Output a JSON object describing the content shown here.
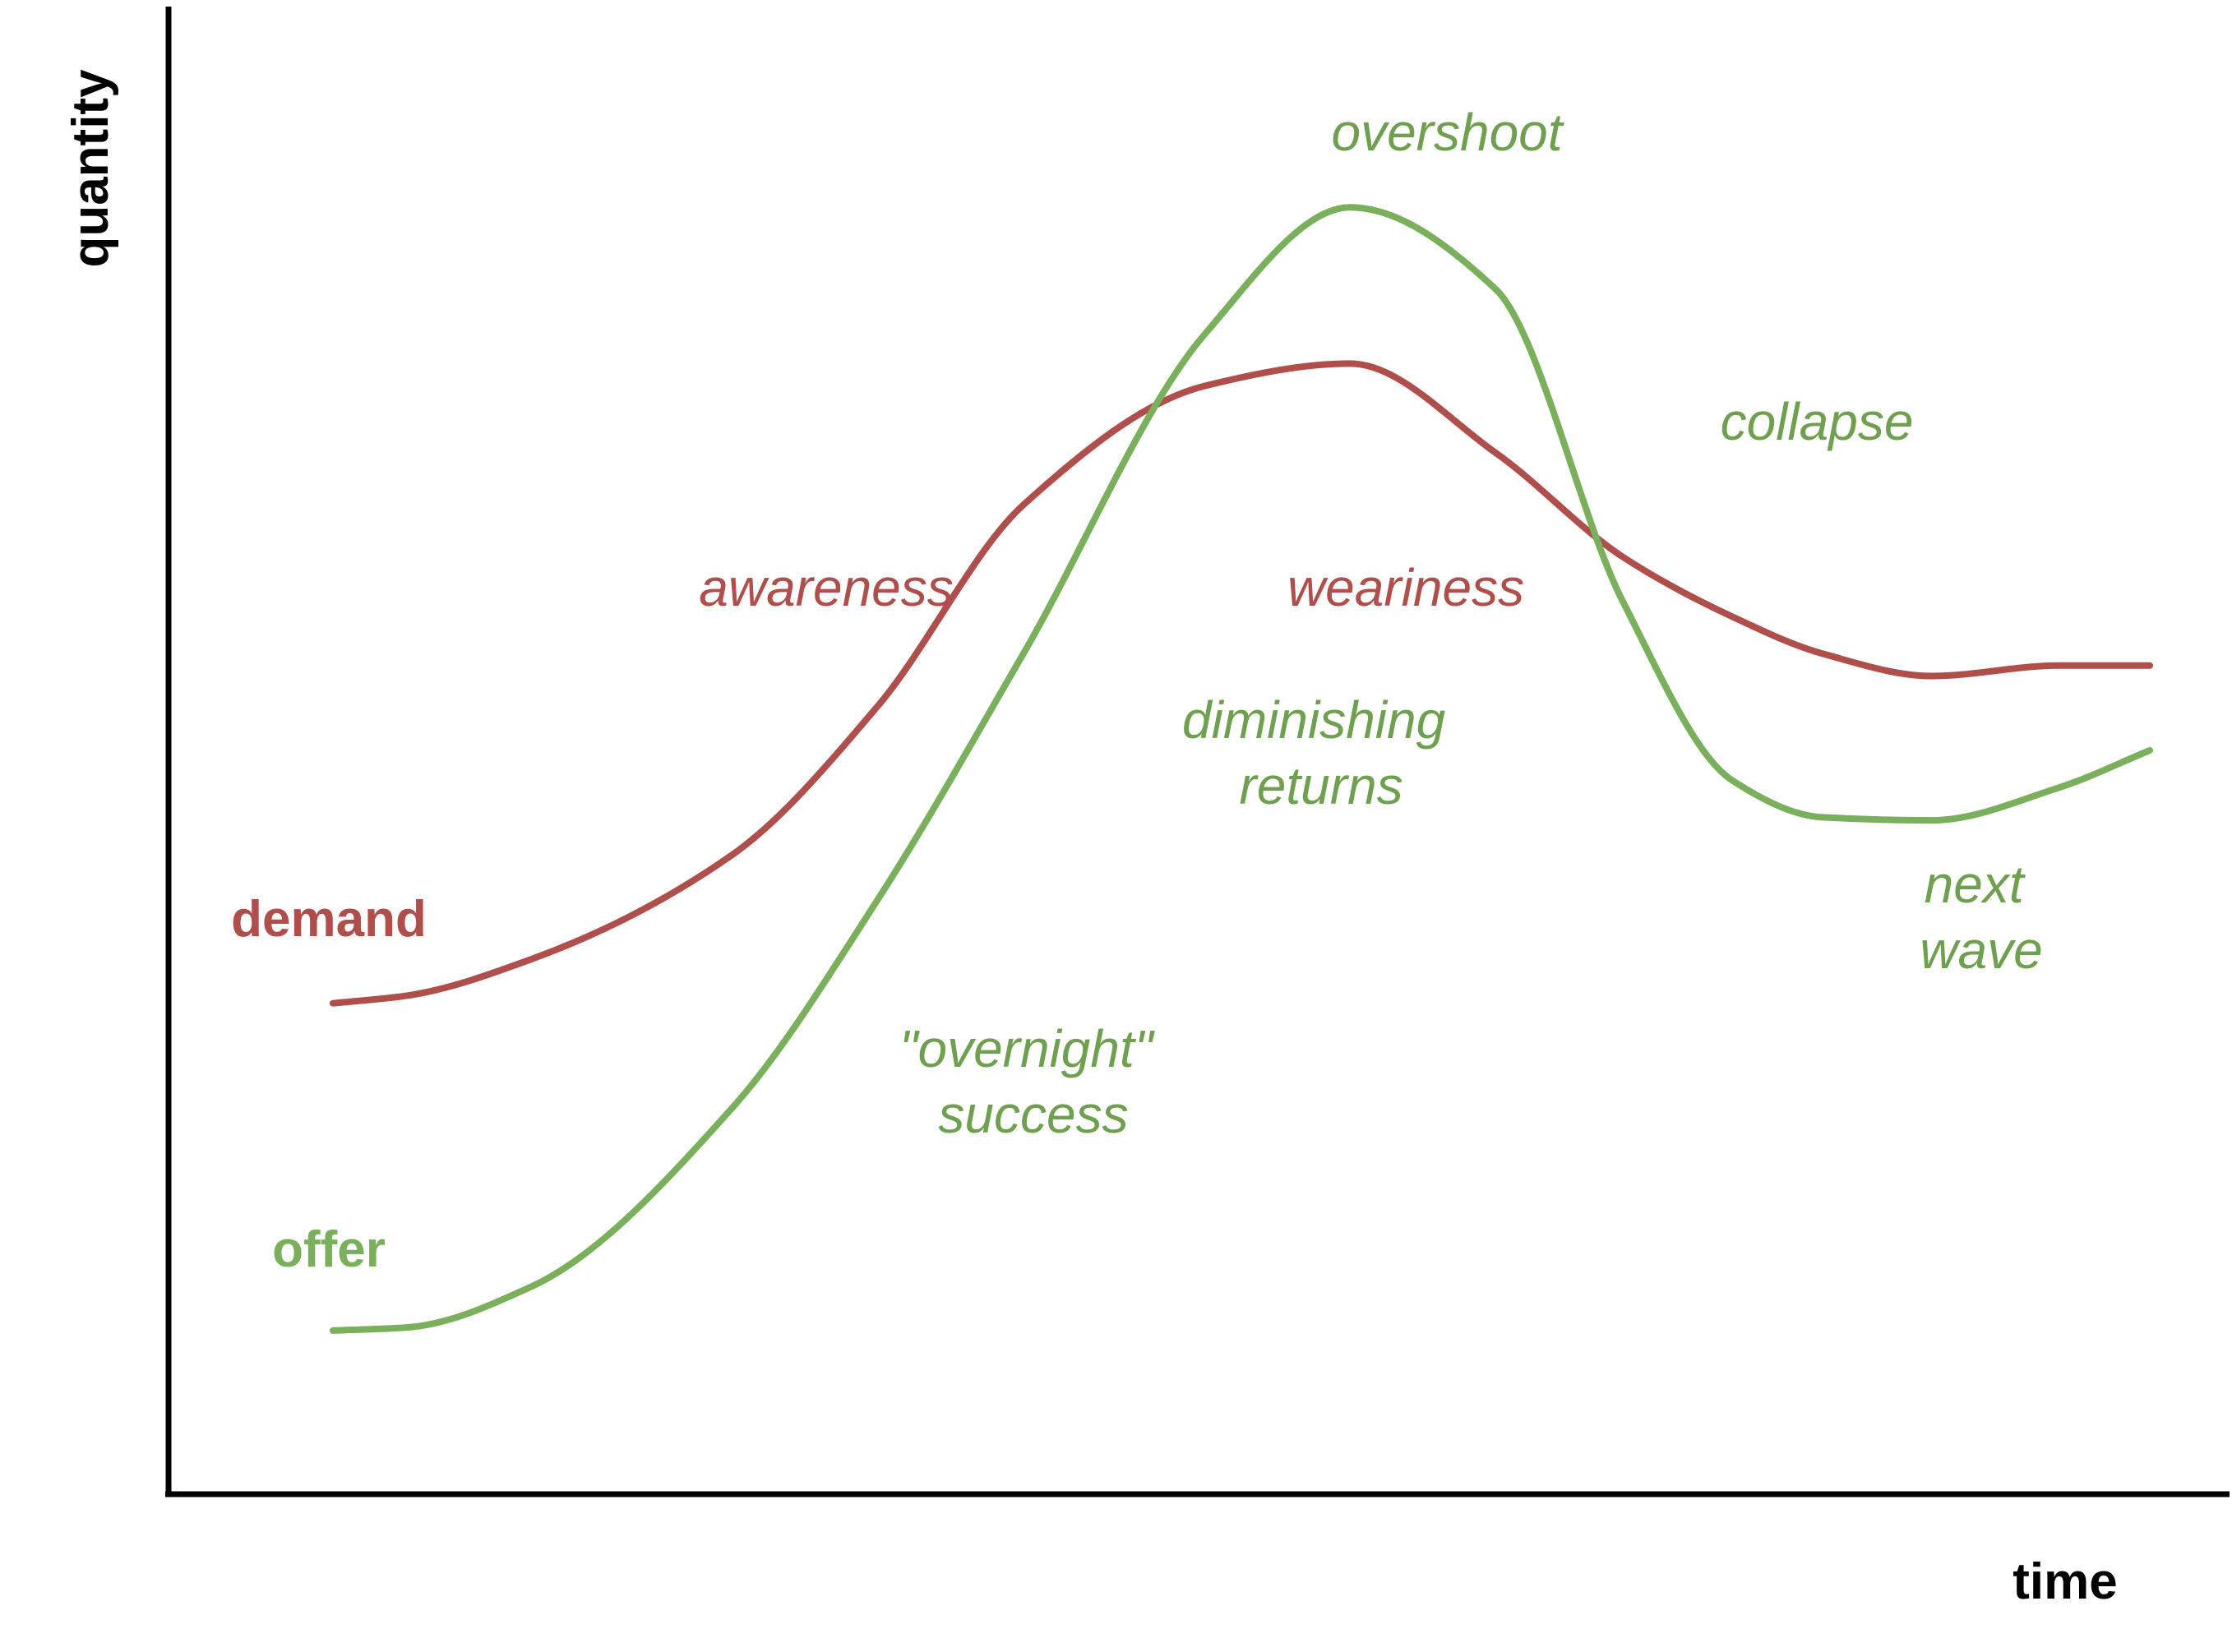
{
  "chart_data": {
    "type": "line",
    "title": "",
    "xlabel": "time",
    "ylabel": "quantity",
    "grid": false,
    "xlim": [
      0,
      100
    ],
    "ylim": [
      0,
      100
    ],
    "x": [
      0,
      4,
      11,
      22,
      30,
      38,
      48,
      56,
      64,
      71,
      77,
      82,
      88,
      95,
      100
    ],
    "series": [
      {
        "name": "demand",
        "color": "#b04e4c",
        "values": [
          33,
          33.5,
          36,
          43,
          53,
          66.5,
          74.5,
          76,
          70,
          63,
          59,
          56.5,
          55,
          55.7,
          55.7
        ]
      },
      {
        "name": "offer",
        "color": "#7ab05c",
        "values": [
          11,
          11.2,
          14,
          26,
          40,
          56.5,
          78,
          86.5,
          81,
          60,
          48,
          45.5,
          45.3,
          47.5,
          50
        ]
      }
    ],
    "annotations": [
      {
        "text": "overshoot",
        "color": "#6fa04f"
      },
      {
        "text": "collapse",
        "color": "#6fa04f"
      },
      {
        "text": "awareness",
        "color": "#b04e4c"
      },
      {
        "text": "weariness",
        "color": "#b04e4c"
      },
      {
        "text": "diminishing\nreturns",
        "lines": [
          "diminishing",
          "returns"
        ],
        "color": "#6fa04f"
      },
      {
        "text": "next\nwave",
        "lines": [
          "next",
          "wave"
        ],
        "color": "#6fa04f"
      },
      {
        "text": "\"overnight\"\nsuccess",
        "lines": [
          "\"overnight\"",
          "success"
        ],
        "color": "#6fa04f"
      }
    ]
  }
}
